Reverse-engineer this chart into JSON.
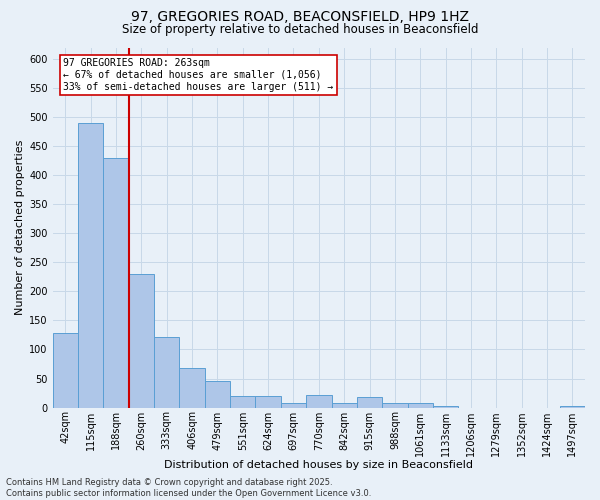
{
  "title1": "97, GREGORIES ROAD, BEACONSFIELD, HP9 1HZ",
  "title2": "Size of property relative to detached houses in Beaconsfield",
  "xlabel": "Distribution of detached houses by size in Beaconsfield",
  "ylabel": "Number of detached properties",
  "bin_labels": [
    "42sqm",
    "115sqm",
    "188sqm",
    "260sqm",
    "333sqm",
    "406sqm",
    "479sqm",
    "551sqm",
    "624sqm",
    "697sqm",
    "770sqm",
    "842sqm",
    "915sqm",
    "988sqm",
    "1061sqm",
    "1133sqm",
    "1206sqm",
    "1279sqm",
    "1352sqm",
    "1424sqm",
    "1497sqm"
  ],
  "bar_heights": [
    128,
    490,
    430,
    230,
    122,
    68,
    45,
    20,
    20,
    8,
    22,
    8,
    18,
    8,
    8,
    3,
    0,
    0,
    0,
    0,
    3
  ],
  "bar_color": "#aec6e8",
  "bar_edge_color": "#5a9fd4",
  "bar_width": 1.0,
  "grid_color": "#c8d8e8",
  "bg_color": "#e8f0f8",
  "property_line_x": 2.5,
  "property_line_color": "#cc0000",
  "annotation_text": "97 GREGORIES ROAD: 263sqm\n← 67% of detached houses are smaller (1,056)\n33% of semi-detached houses are larger (511) →",
  "annotation_box_color": "#ffffff",
  "annotation_box_edge": "#cc0000",
  "ylim": [
    0,
    620
  ],
  "yticks": [
    0,
    50,
    100,
    150,
    200,
    250,
    300,
    350,
    400,
    450,
    500,
    550,
    600
  ],
  "footer_text": "Contains HM Land Registry data © Crown copyright and database right 2025.\nContains public sector information licensed under the Open Government Licence v3.0.",
  "title1_fontsize": 10,
  "title2_fontsize": 8.5,
  "xlabel_fontsize": 8,
  "ylabel_fontsize": 8,
  "tick_fontsize": 7,
  "footer_fontsize": 6,
  "annot_fontsize": 7
}
